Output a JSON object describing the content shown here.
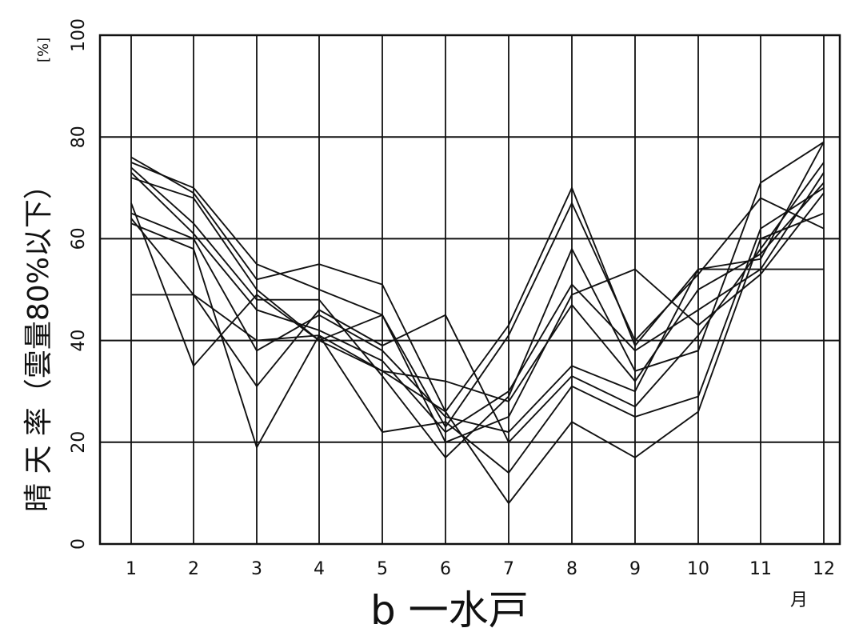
{
  "chart_data": {
    "type": "line",
    "ylabel": "晴 天 率（雲量80%以下）",
    "yunit": "[%]",
    "caption": "b 一水戸",
    "xunit": "月",
    "categories": [
      "1",
      "2",
      "3",
      "4",
      "5",
      "6",
      "7",
      "8",
      "9",
      "10",
      "11",
      "12"
    ],
    "yticks": [
      "0",
      "20",
      "40",
      "60",
      "80",
      "100"
    ],
    "ylim": [
      0,
      100
    ],
    "grid": true,
    "line_color": "#111111",
    "series": [
      {
        "values": [
          76,
          69,
          52,
          55,
          51,
          26,
          43,
          70,
          39,
          54,
          56,
          79
        ]
      },
      {
        "values": [
          75,
          70,
          55,
          50,
          45,
          23,
          41,
          67,
          40,
          53,
          68,
          62
        ]
      },
      {
        "values": [
          74,
          63,
          48,
          48,
          33,
          17,
          29,
          58,
          34,
          38,
          71,
          79
        ]
      },
      {
        "values": [
          73,
          61,
          46,
          42,
          36,
          22,
          30,
          51,
          38,
          46,
          54,
          73
        ]
      },
      {
        "values": [
          72,
          68,
          50,
          40,
          34,
          32,
          28,
          47,
          32,
          50,
          57,
          71
        ]
      },
      {
        "values": [
          67,
          35,
          49,
          40,
          45,
          20,
          25,
          49,
          54,
          43,
          53,
          69
        ]
      },
      {
        "values": [
          65,
          60,
          38,
          45,
          38,
          25,
          22,
          35,
          30,
          54,
          54,
          54
        ]
      },
      {
        "values": [
          64,
          49,
          31,
          46,
          39,
          45,
          20,
          33,
          27,
          41,
          58,
          75
        ]
      },
      {
        "values": [
          63,
          58,
          19,
          41,
          22,
          24,
          14,
          31,
          25,
          29,
          62,
          70
        ]
      },
      {
        "values": [
          49,
          49,
          40,
          41,
          34,
          26,
          8,
          24,
          17,
          26,
          60,
          65
        ]
      }
    ]
  }
}
